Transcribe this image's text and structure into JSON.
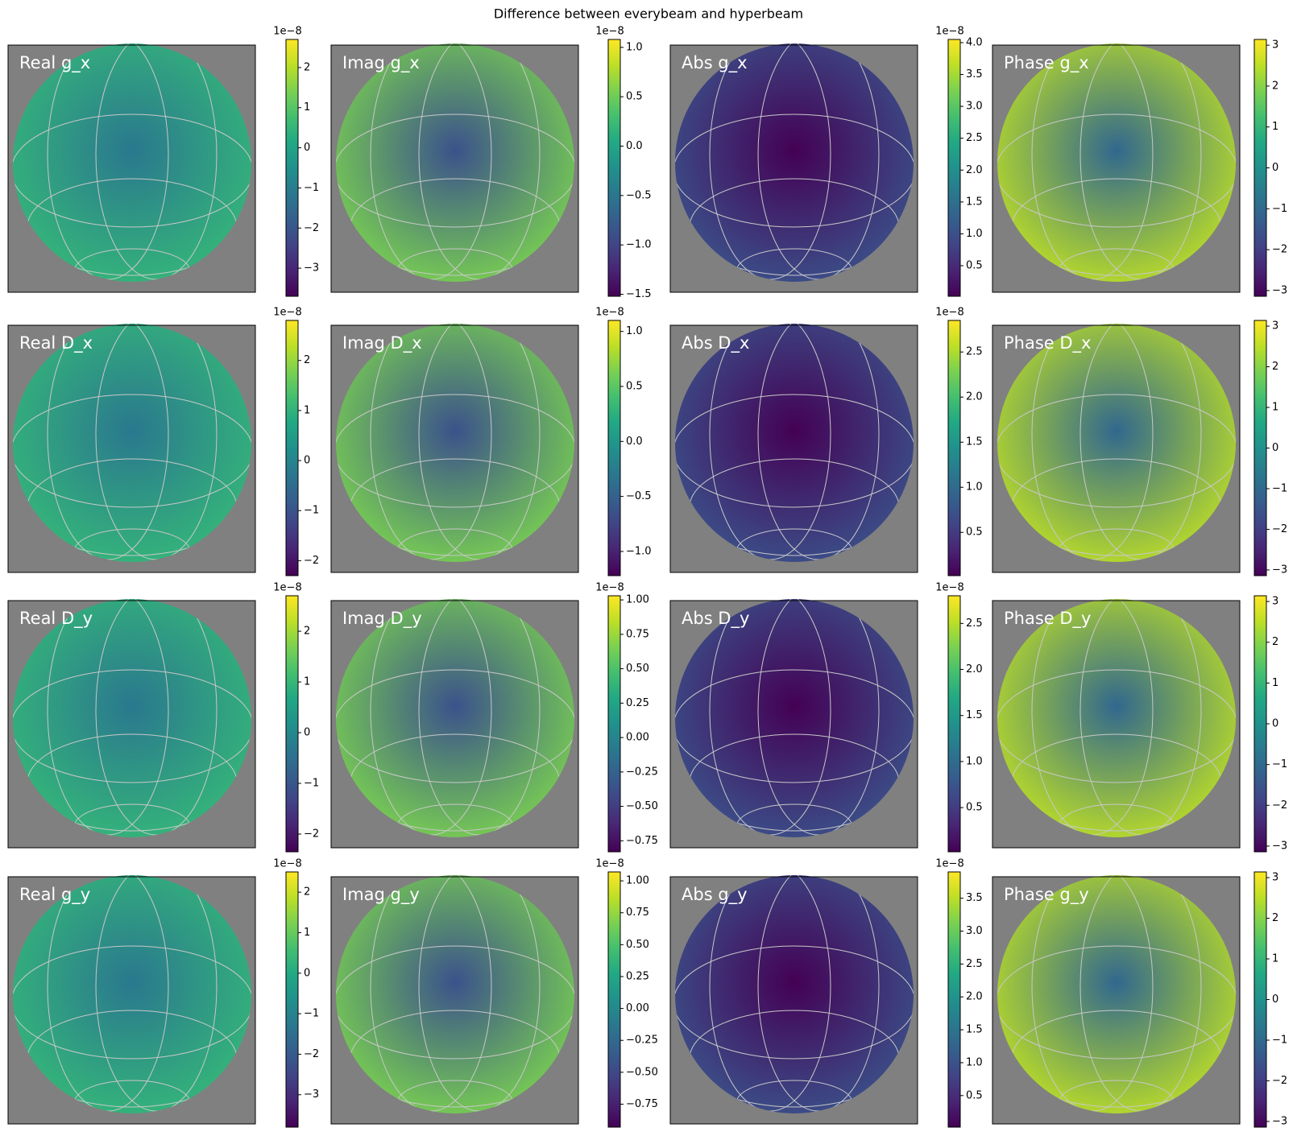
{
  "title": "Difference between everybeam and hyperbeam",
  "chart_data": [
    {
      "type": "heatmap",
      "title": "Real g_x",
      "offset_text": "1e−8",
      "clim": [
        -3.7,
        2.7
      ],
      "cticks": [
        {
          "value": -3,
          "label": "−3"
        },
        {
          "value": -2,
          "label": "−2"
        },
        {
          "value": -1,
          "label": "−1"
        },
        0,
        1,
        2
      ]
    },
    {
      "type": "heatmap",
      "title": "Imag g_x",
      "offset_text": "1e−8",
      "clim": [
        -1.52,
        1.08
      ],
      "cticks": [
        {
          "value": -1.5,
          "label": "−1.5"
        },
        {
          "value": -1.0,
          "label": "−1.0"
        },
        {
          "value": -0.5,
          "label": "−0.5"
        },
        {
          "value": 0,
          "label": "0.0"
        },
        0.5,
        {
          "value": 1.0,
          "label": "1.0"
        }
      ]
    },
    {
      "type": "heatmap",
      "title": "Abs g_x",
      "offset_text": "1e−8",
      "clim": [
        0.02,
        4.05
      ],
      "cticks": [
        0.5,
        {
          "value": 1.0,
          "label": "1.0"
        },
        1.5,
        {
          "value": 2.0,
          "label": "2.0"
        },
        2.5,
        {
          "value": 3.0,
          "label": "3.0"
        },
        3.5,
        {
          "value": 4.0,
          "label": "4.0"
        }
      ]
    },
    {
      "type": "heatmap",
      "title": "Phase g_x",
      "clim": [
        -3.14,
        3.14
      ],
      "cticks": [
        {
          "value": -3,
          "label": "−3"
        },
        {
          "value": -2,
          "label": "−2"
        },
        {
          "value": -1,
          "label": "−1"
        },
        0,
        1,
        2,
        3
      ]
    },
    {
      "type": "heatmap",
      "title": "Real D_x",
      "offset_text": "1e−8",
      "clim": [
        -2.3,
        2.8
      ],
      "cticks": [
        {
          "value": -2,
          "label": "−2"
        },
        {
          "value": -1,
          "label": "−1"
        },
        0,
        1,
        2
      ]
    },
    {
      "type": "heatmap",
      "title": "Imag D_x",
      "offset_text": "1e−8",
      "clim": [
        -1.22,
        1.1
      ],
      "cticks": [
        {
          "value": -1.0,
          "label": "−1.0"
        },
        {
          "value": -0.5,
          "label": "−0.5"
        },
        {
          "value": 0,
          "label": "0.0"
        },
        0.5,
        {
          "value": 1.0,
          "label": "1.0"
        }
      ]
    },
    {
      "type": "heatmap",
      "title": "Abs D_x",
      "offset_text": "1e−8",
      "clim": [
        0.02,
        2.85
      ],
      "cticks": [
        0.5,
        {
          "value": 1.0,
          "label": "1.0"
        },
        1.5,
        {
          "value": 2.0,
          "label": "2.0"
        },
        2.5
      ]
    },
    {
      "type": "heatmap",
      "title": "Phase D_x",
      "clim": [
        -3.14,
        3.14
      ],
      "cticks": [
        {
          "value": -3,
          "label": "−3"
        },
        {
          "value": -2,
          "label": "−2"
        },
        {
          "value": -1,
          "label": "−1"
        },
        0,
        1,
        2,
        3
      ]
    },
    {
      "type": "heatmap",
      "title": "Real D_y",
      "offset_text": "1e−8",
      "clim": [
        -2.35,
        2.7
      ],
      "cticks": [
        {
          "value": -2,
          "label": "−2"
        },
        {
          "value": -1,
          "label": "−1"
        },
        0,
        1,
        2
      ]
    },
    {
      "type": "heatmap",
      "title": "Imag D_y",
      "offset_text": "1e−8",
      "clim": [
        -0.83,
        1.03
      ],
      "cticks": [
        {
          "value": -0.75,
          "label": "−0.75"
        },
        {
          "value": -0.5,
          "label": "−0.50"
        },
        {
          "value": -0.25,
          "label": "−0.25"
        },
        {
          "value": 0,
          "label": "0.00"
        },
        0.25,
        {
          "value": 0.5,
          "label": "0.50"
        },
        0.75,
        {
          "value": 1.0,
          "label": "1.00"
        }
      ]
    },
    {
      "type": "heatmap",
      "title": "Abs D_y",
      "offset_text": "1e−8",
      "clim": [
        0.02,
        2.8
      ],
      "cticks": [
        0.5,
        {
          "value": 1.0,
          "label": "1.0"
        },
        1.5,
        {
          "value": 2.0,
          "label": "2.0"
        },
        2.5
      ]
    },
    {
      "type": "heatmap",
      "title": "Phase D_y",
      "clim": [
        -3.14,
        3.14
      ],
      "cticks": [
        {
          "value": -3,
          "label": "−3"
        },
        {
          "value": -2,
          "label": "−2"
        },
        {
          "value": -1,
          "label": "−1"
        },
        0,
        1,
        2,
        3
      ]
    },
    {
      "type": "heatmap",
      "title": "Real g_y",
      "offset_text": "1e−8",
      "clim": [
        -3.8,
        2.5
      ],
      "cticks": [
        {
          "value": -3,
          "label": "−3"
        },
        {
          "value": -2,
          "label": "−2"
        },
        {
          "value": -1,
          "label": "−1"
        },
        0,
        1,
        2
      ]
    },
    {
      "type": "heatmap",
      "title": "Imag g_y",
      "offset_text": "1e−8",
      "clim": [
        -0.93,
        1.07
      ],
      "cticks": [
        {
          "value": -0.75,
          "label": "−0.75"
        },
        {
          "value": -0.5,
          "label": "−0.50"
        },
        {
          "value": -0.25,
          "label": "−0.25"
        },
        {
          "value": 0,
          "label": "0.00"
        },
        0.25,
        {
          "value": 0.5,
          "label": "0.50"
        },
        0.75,
        {
          "value": 1.0,
          "label": "1.00"
        }
      ]
    },
    {
      "type": "heatmap",
      "title": "Abs g_y",
      "offset_text": "1e−8",
      "clim": [
        0.02,
        3.9
      ],
      "cticks": [
        0.5,
        {
          "value": 1.0,
          "label": "1.0"
        },
        1.5,
        {
          "value": 2.0,
          "label": "2.0"
        },
        2.5,
        {
          "value": 3.0,
          "label": "3.0"
        },
        3.5
      ]
    },
    {
      "type": "heatmap",
      "title": "Phase g_y",
      "clim": [
        -3.14,
        3.14
      ],
      "cticks": [
        {
          "value": -3,
          "label": "−3"
        },
        {
          "value": -2,
          "label": "−2"
        },
        {
          "value": -1,
          "label": "−1"
        },
        0,
        1,
        2,
        3
      ]
    }
  ]
}
